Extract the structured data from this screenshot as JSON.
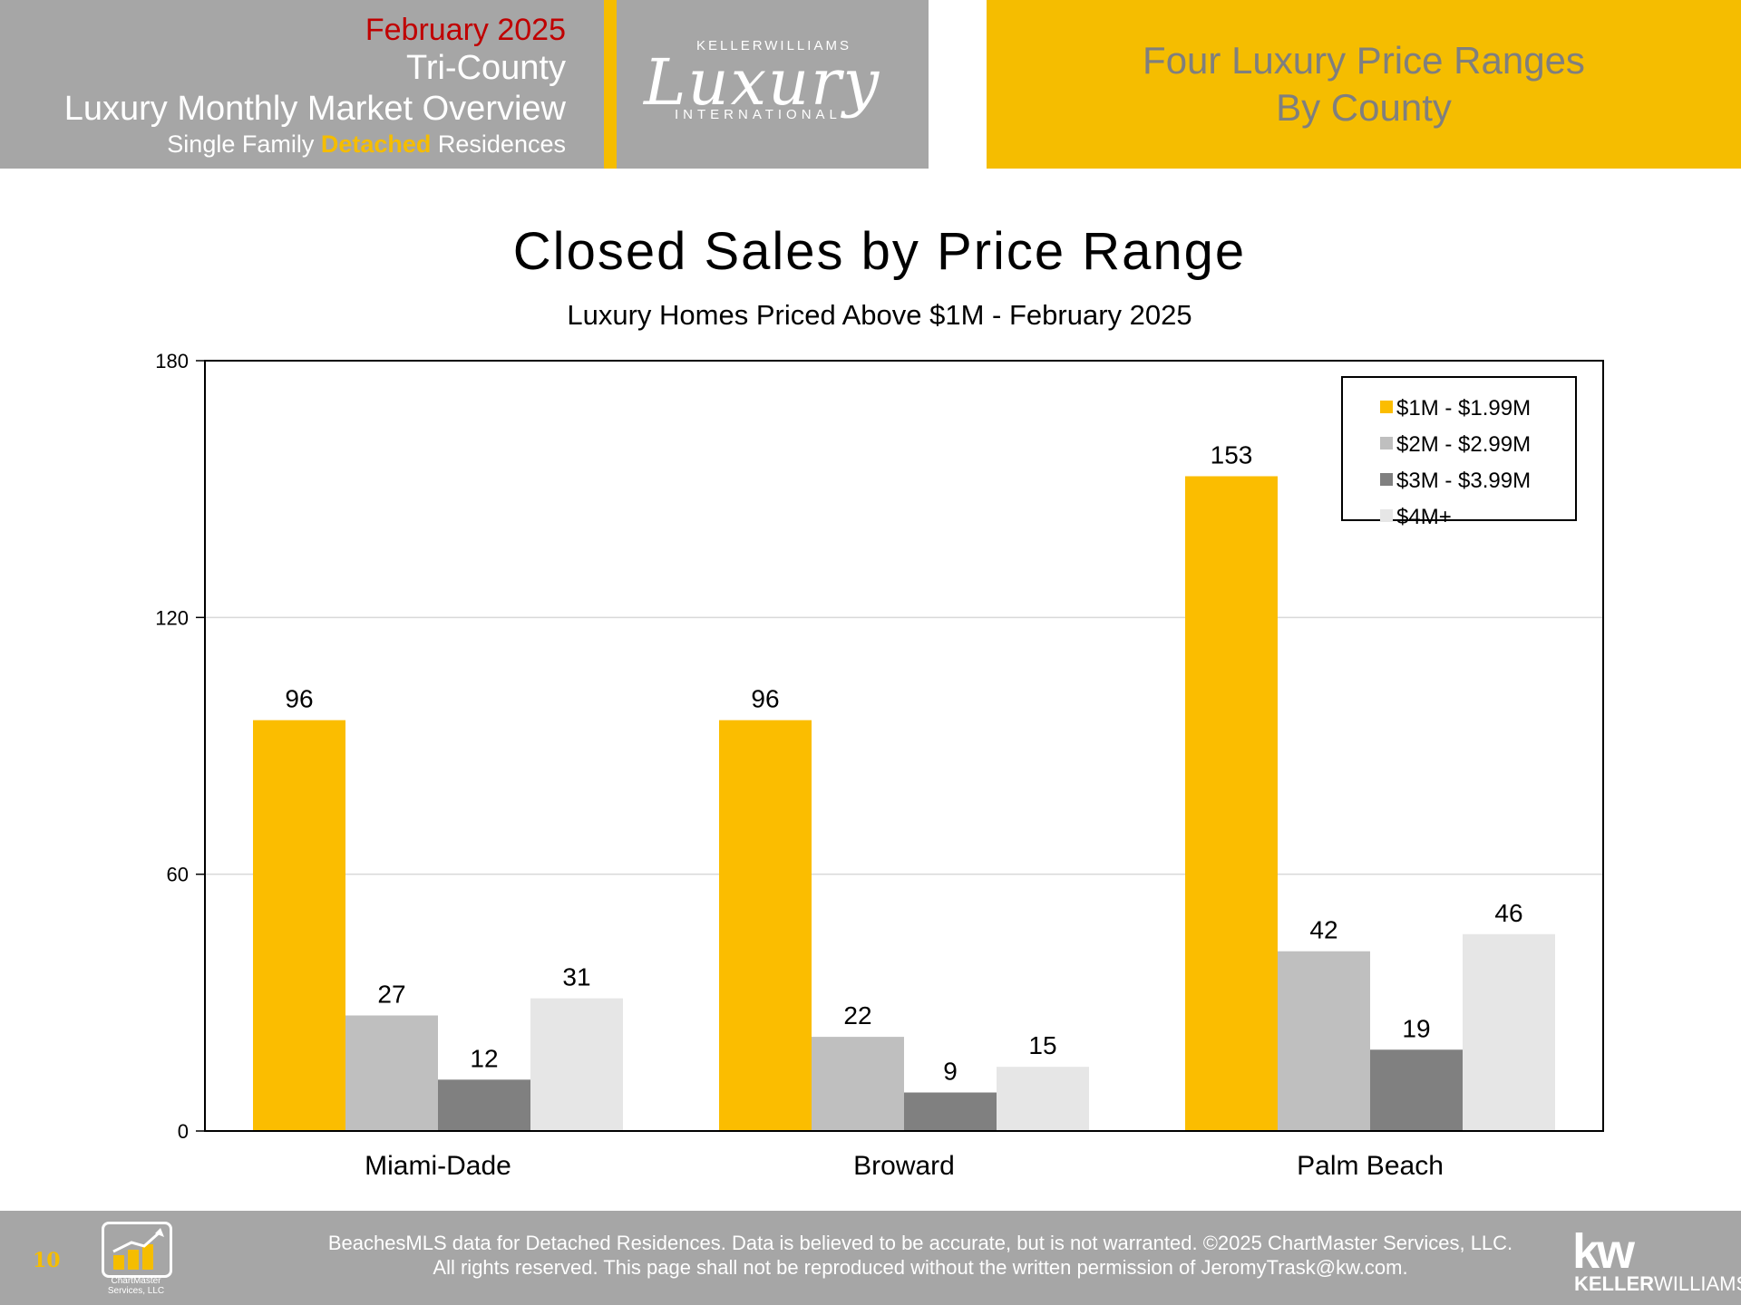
{
  "header": {
    "date": "February 2025",
    "region": "Tri-County",
    "report": "Luxury Monthly Market Overview",
    "sub_prefix": "Single Family ",
    "sub_highlight": "Detached",
    "sub_suffix": " Residences",
    "logo_top": "KELLERWILLIAMS",
    "logo_script": "Luxury",
    "logo_bottom": "INTERNATIONAL",
    "banner_line1": "Four Luxury Price Ranges",
    "banner_line2": "By County"
  },
  "colors": {
    "gold": "#f5bd00",
    "gray_header": "#a6a6a6",
    "date_red": "#c00000",
    "series": [
      "#fbbd00",
      "#bfbfbf",
      "#808080",
      "#e6e6e6"
    ]
  },
  "chart_data": {
    "type": "bar",
    "title": "Closed Sales by Price Range",
    "subtitle": "Luxury Homes Priced Above $1M - February 2025",
    "categories": [
      "Miami-Dade",
      "Broward",
      "Palm Beach"
    ],
    "series": [
      {
        "name": "$1M - $1.99M",
        "values": [
          96,
          96,
          153
        ]
      },
      {
        "name": "$2M - $2.99M",
        "values": [
          27,
          22,
          42
        ]
      },
      {
        "name": "$3M - $3.99M",
        "values": [
          12,
          9,
          19
        ]
      },
      {
        "name": "$4M+",
        "values": [
          31,
          15,
          46
        ]
      }
    ],
    "ylim": [
      0,
      180
    ],
    "yticks": [
      0,
      60,
      120,
      180
    ],
    "grid": true,
    "legend": "top-right",
    "data_labels": true
  },
  "footer": {
    "page_number": "10",
    "chartmaster_name": "ChartMaster Services, LLC",
    "disclaimer_line1": "BeachesMLS data for Detached Residences.  Data is believed to be accurate, but is not warranted.   ©2025  ChartMaster Services, LLC.",
    "disclaimer_line2": "All rights reserved. This page shall not be reproduced without the written permission of JeromyTrask@kw.com.",
    "kw_mark": "kw",
    "kw_name_bold": "KELLER",
    "kw_name_rest": "WILLIAMS."
  }
}
